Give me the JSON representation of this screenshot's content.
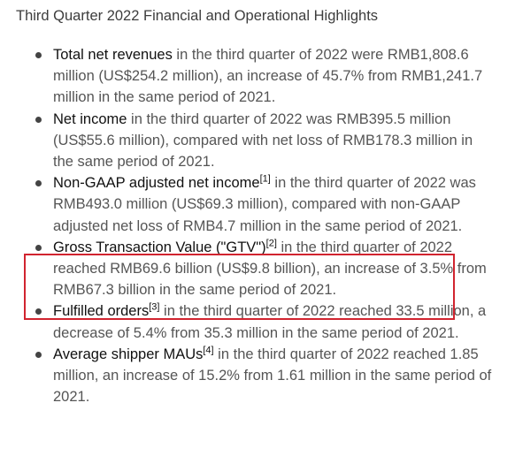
{
  "heading": "Third Quarter 2022 Financial and Operational Highlights",
  "highlight_color": "#d1242f",
  "items": [
    {
      "term": "Total net revenues",
      "note": "",
      "text": " in the third quarter of 2022 were RMB1,808.6 million (US$254.2 million), an increase of 45.7% from RMB1,241.7 million in the same period of 2021."
    },
    {
      "term": "Net income",
      "note": "",
      "text": " in the third quarter of 2022 was RMB395.5 million (US$55.6 million), compared with net loss of RMB178.3 million in the same period of 2021."
    },
    {
      "term": "Non-GAAP adjusted net income",
      "note": "[1]",
      "text": " in the third quarter of 2022 was RMB493.0 million (US$69.3 million), compared with non-GAAP adjusted net loss of RMB4.7 million in the same period of 2021."
    },
    {
      "term": "Gross Transaction Value (\"GTV\")",
      "note": "[2]",
      "text": " in the third quarter of 2022 reached RMB69.6 billion (US$9.8 billion), an increase of 3.5% from RMB67.3 billion in the same period of 2021."
    },
    {
      "term": "Fulfilled orders",
      "note": "[3]",
      "text": " in the third quarter of 2022 reached 33.5 million, a decrease of 5.4% from 35.3 million in the same period of 2021."
    },
    {
      "term": "Average shipper MAUs",
      "note": "[4]",
      "text": " in the third quarter of 2022 reached 1.85 million, an increase of 15.2% from 1.61 million in the same period of 2021."
    }
  ]
}
